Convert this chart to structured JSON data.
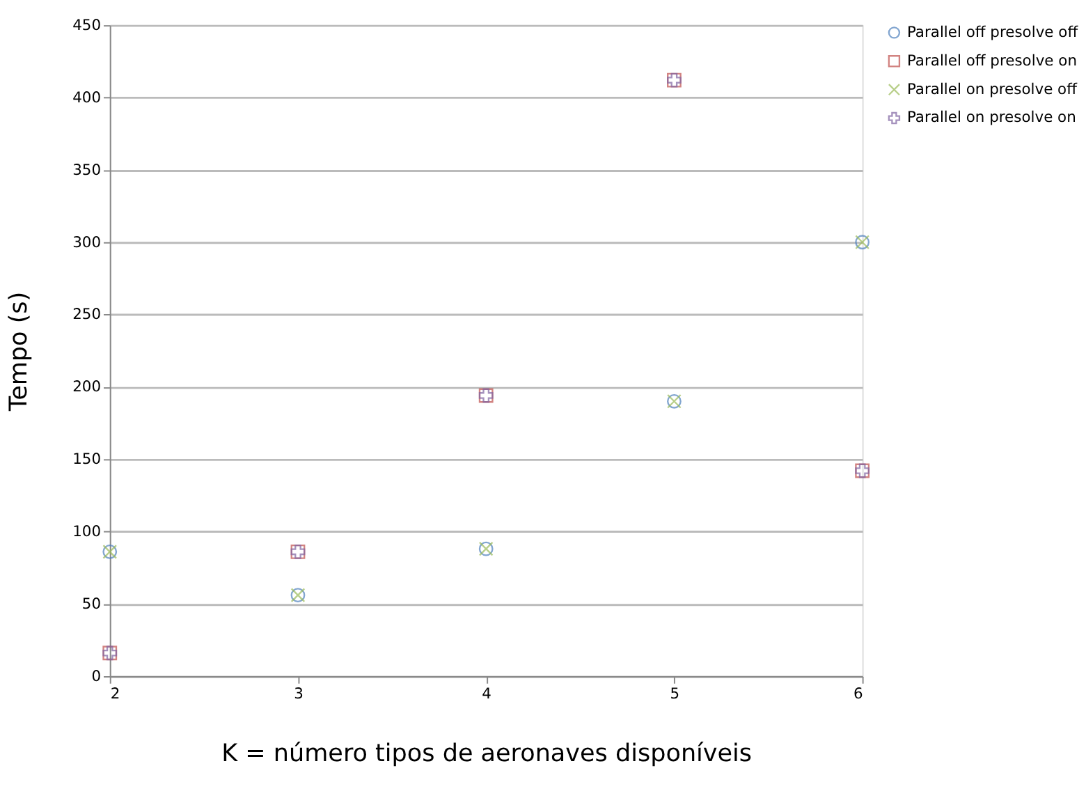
{
  "chart_data": {
    "type": "scatter",
    "xlabel": "K = número tipos de aeronaves disponíveis",
    "ylabel": "Tempo (s)",
    "x": [
      2,
      3,
      4,
      5,
      6
    ],
    "series": [
      {
        "name": "Parallel off presolve off",
        "color": "#4f81bd",
        "marker": "circle",
        "values": [
          86,
          56,
          88,
          190,
          300
        ]
      },
      {
        "name": "Parallel off presolve on",
        "color": "#c0504d",
        "marker": "square",
        "values": [
          16,
          86,
          194,
          412,
          142
        ]
      },
      {
        "name": "Parallel on presolve off",
        "color": "#9bbb59",
        "marker": "cross",
        "values": [
          86,
          56,
          88,
          190,
          300
        ]
      },
      {
        "name": "Parallel on presolve on",
        "color": "#8064a2",
        "marker": "plus",
        "values": [
          16,
          86,
          194,
          412,
          142
        ]
      }
    ],
    "xlim": [
      2,
      6
    ],
    "xticks": [
      2,
      3,
      4,
      5,
      6
    ],
    "ylim": [
      0,
      450
    ],
    "yticks": [
      0,
      50,
      100,
      150,
      200,
      250,
      300,
      350,
      400,
      450
    ],
    "grid": "y",
    "legend": "right"
  }
}
